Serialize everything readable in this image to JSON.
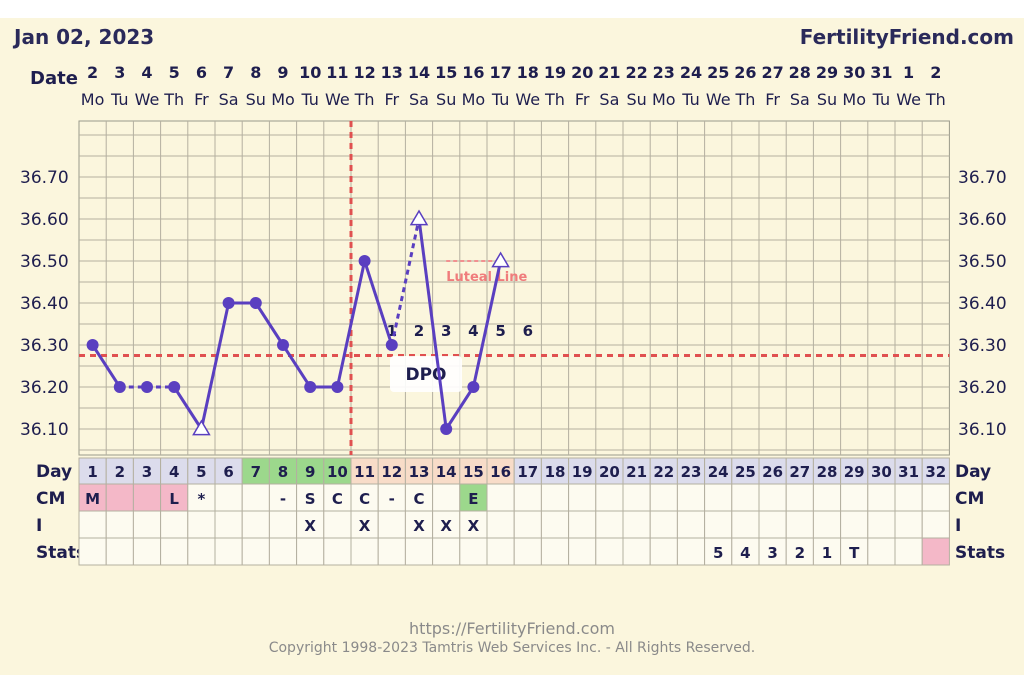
{
  "header": {
    "date": "Jan 02, 2023",
    "brand": "FertilityFriend.com"
  },
  "footer": {
    "url": "https://FertilityFriend.com",
    "copyright": "Copyright 1998-2023 Tamtris Web Services Inc. - All Rights Reserved."
  },
  "row_labels": {
    "date": "Date",
    "day": "Day",
    "cm": "CM",
    "i": "I",
    "stats": "Stats"
  },
  "dates": [
    "2",
    "3",
    "4",
    "5",
    "6",
    "7",
    "8",
    "9",
    "10",
    "11",
    "12",
    "13",
    "14",
    "15",
    "16",
    "17",
    "18",
    "19",
    "20",
    "21",
    "22",
    "23",
    "24",
    "25",
    "26",
    "27",
    "28",
    "29",
    "30",
    "31",
    "1",
    "2"
  ],
  "weekdays": [
    "Mo",
    "Tu",
    "We",
    "Th",
    "Fr",
    "Sa",
    "Su",
    "Mo",
    "Tu",
    "We",
    "Th",
    "Fr",
    "Sa",
    "Su",
    "Mo",
    "Tu",
    "We",
    "Th",
    "Fr",
    "Sa",
    "Su",
    "Mo",
    "Tu",
    "We",
    "Th",
    "Fr",
    "Sa",
    "Su",
    "Mo",
    "Tu",
    "We",
    "Th"
  ],
  "cycle_days": [
    "1",
    "2",
    "3",
    "4",
    "5",
    "6",
    "7",
    "8",
    "9",
    "10",
    "11",
    "12",
    "13",
    "14",
    "15",
    "16",
    "17",
    "18",
    "19",
    "20",
    "21",
    "22",
    "23",
    "24",
    "25",
    "26",
    "27",
    "28",
    "29",
    "30",
    "31",
    "32"
  ],
  "day_colors": [
    "#dcdcec",
    "#dcdcec",
    "#dcdcec",
    "#dcdcec",
    "#dcdcec",
    "#dcdcec",
    "#9cd88c",
    "#9cd88c",
    "#9cd88c",
    "#9cd88c",
    "#f8dcc8",
    "#f8dcc8",
    "#f8dcc8",
    "#f8dcc8",
    "#f8dcc8",
    "#f8dcc8",
    "#dcdcec",
    "#dcdcec",
    "#dcdcec",
    "#dcdcec",
    "#dcdcec",
    "#dcdcec",
    "#dcdcec",
    "#dcdcec",
    "#dcdcec",
    "#dcdcec",
    "#dcdcec",
    "#dcdcec",
    "#dcdcec",
    "#dcdcec",
    "#dcdcec",
    "#dcdcec"
  ],
  "cm": [
    "M",
    "",
    "",
    "L",
    "*",
    "",
    "",
    "-",
    "S",
    "C",
    "C",
    "-",
    "C",
    "",
    "E",
    "",
    "",
    "",
    "",
    "",
    "",
    "",
    "",
    "",
    "",
    "",
    "",
    "",
    "",
    "",
    "",
    ""
  ],
  "cm_colors": [
    "#f4b8c8",
    "#f4b8c8",
    "#f4b8c8",
    "#f4b8c8",
    "",
    "",
    "",
    "",
    "",
    "",
    "",
    "",
    "",
    "",
    "#9cd88c",
    "",
    "",
    "",
    "",
    "",
    "",
    "",
    "",
    "",
    "",
    "",
    "",
    "",
    "",
    "",
    "",
    ""
  ],
  "intercourse": [
    "",
    "",
    "",
    "",
    "",
    "",
    "",
    "",
    "X",
    "",
    "X",
    "",
    "X",
    "X",
    "X",
    "",
    "",
    "",
    "",
    "",
    "",
    "",
    "",
    "",
    "",
    "",
    "",
    "",
    "",
    "",
    "",
    ""
  ],
  "stats": [
    "",
    "",
    "",
    "",
    "",
    "",
    "",
    "",
    "",
    "",
    "",
    "",
    "",
    "",
    "",
    "",
    "",
    "",
    "",
    "",
    "",
    "",
    "",
    "5",
    "4",
    "3",
    "2",
    "1",
    "T",
    "",
    "",
    ""
  ],
  "stats_colors": [
    "",
    "",
    "",
    "",
    "",
    "",
    "",
    "",
    "",
    "",
    "",
    "",
    "",
    "",
    "",
    "",
    "",
    "",
    "",
    "",
    "",
    "",
    "",
    "",
    "",
    "",
    "",
    "",
    "",
    "",
    "",
    "#f4b8c8"
  ],
  "chart_data": {
    "type": "line",
    "ylabel_ticks": [
      "36.10",
      "36.20",
      "36.30",
      "36.40",
      "36.50",
      "36.60",
      "36.70"
    ],
    "ylim": [
      36.0,
      36.8
    ],
    "x": [
      1,
      2,
      3,
      4,
      5,
      6,
      7,
      8,
      9,
      10,
      11,
      12,
      13,
      14,
      15,
      16
    ],
    "values": [
      36.3,
      36.2,
      36.2,
      36.2,
      36.1,
      36.4,
      36.4,
      36.3,
      36.2,
      36.2,
      36.5,
      36.3,
      36.6,
      36.1,
      36.2,
      36.5
    ],
    "markers": [
      "circle",
      "circle",
      "circle",
      "circle",
      "open-triangle",
      "circle",
      "circle",
      "circle",
      "circle",
      "circle",
      "circle",
      "circle",
      "open-triangle",
      "circle",
      "circle",
      "open-triangle"
    ],
    "dashed_segments_after": [
      2,
      3,
      12
    ],
    "coverline": 36.275,
    "ovulation_after_day": 10,
    "dpo_labels": [
      "1",
      "2",
      "3",
      "4",
      "5",
      "6"
    ],
    "dpo_text": "DPO",
    "luteal_text": "Luteal Line",
    "luteal_value": 36.5,
    "luteal_from_day": 14,
    "luteal_to_day": 16,
    "line_color": "#5a3fc0",
    "cover_color": "#e05050"
  }
}
